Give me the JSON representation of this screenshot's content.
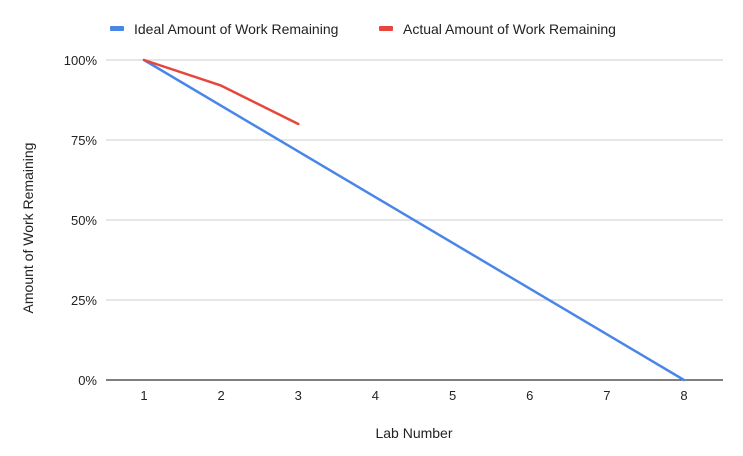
{
  "chart_data": {
    "type": "line",
    "title": "",
    "xlabel": "Lab Number",
    "ylabel": "Amount of Work Remaining",
    "x": [
      1,
      2,
      3,
      4,
      5,
      6,
      7,
      8
    ],
    "x_tick_labels": [
      "1",
      "2",
      "3",
      "4",
      "5",
      "6",
      "7",
      "8"
    ],
    "y_tick_labels": [
      "0%",
      "25%",
      "50%",
      "75%",
      "100%"
    ],
    "y_ticks": [
      0,
      25,
      50,
      75,
      100
    ],
    "ylim": [
      0,
      100
    ],
    "y_unit": "%",
    "grid": true,
    "legend_position": "top-left",
    "series": [
      {
        "name": "Ideal Amount of Work Remaining",
        "color": "#4a86e8",
        "x": [
          1,
          8
        ],
        "values": [
          100,
          0
        ]
      },
      {
        "name": "Actual Amount of Work Remaining",
        "color": "#e8453c",
        "x": [
          1,
          2,
          3
        ],
        "values": [
          100,
          92,
          80
        ]
      }
    ]
  }
}
